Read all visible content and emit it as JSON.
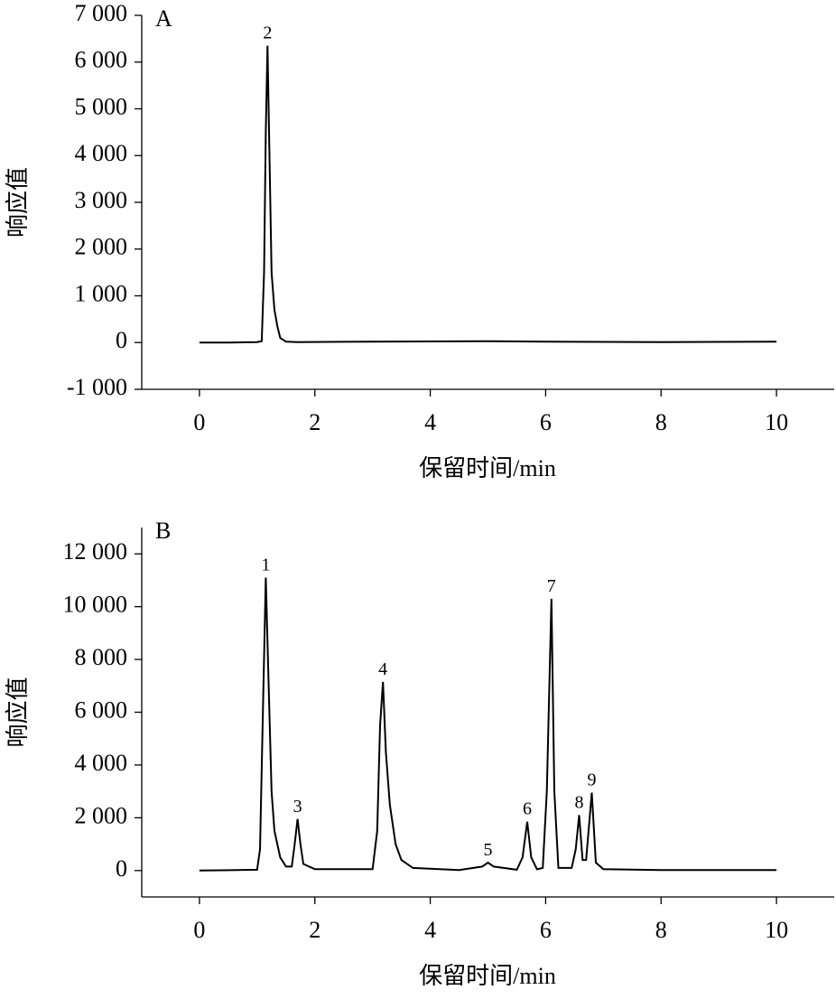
{
  "chart_data": [
    {
      "type": "line",
      "panel_label": "A",
      "ylabel": "响应值",
      "xlabel": "保留时间/min",
      "xlim": [
        -1,
        11
      ],
      "xticks": [
        0,
        2,
        4,
        6,
        8,
        10
      ],
      "ylim": [
        -1000,
        7000
      ],
      "yticks": [
        {
          "value": -1000,
          "label": "-1 000"
        },
        0,
        {
          "value": 1000,
          "label": "1 000"
        },
        {
          "value": 2000,
          "label": "2 000"
        },
        {
          "value": 3000,
          "label": "3 000"
        },
        {
          "value": 4000,
          "label": "4 000"
        },
        {
          "value": 5000,
          "label": "5 000"
        },
        {
          "value": 6000,
          "label": "6 000"
        },
        {
          "value": 7000,
          "label": "7 000"
        }
      ],
      "series": [
        {
          "color": "#000000",
          "x": [
            0,
            0.5,
            1.0,
            1.08,
            1.12,
            1.15,
            1.18,
            1.21,
            1.25,
            1.3,
            1.35,
            1.4,
            1.5,
            1.7,
            3,
            5,
            6,
            8,
            10
          ],
          "values": [
            0,
            0,
            10,
            30,
            1500,
            4500,
            6350,
            4200,
            1500,
            700,
            350,
            100,
            20,
            10,
            20,
            30,
            20,
            10,
            20
          ]
        }
      ],
      "annotations": [
        {
          "text": "2",
          "x": 1.18,
          "y": 6350
        }
      ]
    },
    {
      "type": "line",
      "panel_label": "B",
      "ylabel": "响应值",
      "xlabel": "保留时间/min",
      "xlim": [
        -1,
        11
      ],
      "xticks": [
        0,
        2,
        4,
        6,
        8,
        10
      ],
      "ylim": [
        -1000,
        13000
      ],
      "yticks": [
        0,
        {
          "value": 2000,
          "label": "2 000"
        },
        {
          "value": 4000,
          "label": "4 000"
        },
        {
          "value": 6000,
          "label": "6 000"
        },
        {
          "value": 8000,
          "label": "8 000"
        },
        {
          "value": 10000,
          "label": "10 000"
        },
        {
          "value": 12000,
          "label": "12 000"
        }
      ],
      "series": [
        {
          "color": "#000000",
          "x": [
            0,
            1.0,
            1.05,
            1.1,
            1.15,
            1.2,
            1.25,
            1.3,
            1.4,
            1.5,
            1.6,
            1.65,
            1.7,
            1.75,
            1.8,
            2.0,
            3.0,
            3.08,
            3.13,
            3.18,
            3.23,
            3.3,
            3.4,
            3.5,
            3.7,
            4.5,
            4.9,
            5.0,
            5.1,
            5.5,
            5.6,
            5.68,
            5.75,
            5.85,
            5.95,
            6.02,
            6.1,
            6.15,
            6.22,
            6.45,
            6.52,
            6.58,
            6.64,
            6.7,
            6.8,
            6.87,
            7.0,
            8,
            10
          ],
          "values": [
            0,
            30,
            800,
            6000,
            11100,
            7000,
            3000,
            1500,
            500,
            150,
            150,
            1000,
            1950,
            1000,
            250,
            50,
            50,
            1500,
            5500,
            7150,
            4500,
            2500,
            1000,
            400,
            100,
            20,
            150,
            300,
            150,
            30,
            500,
            1850,
            500,
            50,
            100,
            3000,
            10300,
            3000,
            100,
            100,
            800,
            2100,
            400,
            400,
            2950,
            300,
            50,
            20,
            20
          ]
        }
      ],
      "annotations": [
        {
          "text": "1",
          "x": 1.15,
          "y": 11100
        },
        {
          "text": "3",
          "x": 1.7,
          "y": 1950
        },
        {
          "text": "4",
          "x": 3.18,
          "y": 7150
        },
        {
          "text": "5",
          "x": 5.0,
          "y": 300
        },
        {
          "text": "6",
          "x": 5.68,
          "y": 1850
        },
        {
          "text": "7",
          "x": 6.1,
          "y": 10300
        },
        {
          "text": "8",
          "x": 6.58,
          "y": 2100
        },
        {
          "text": "9",
          "x": 6.8,
          "y": 2950
        }
      ]
    }
  ]
}
